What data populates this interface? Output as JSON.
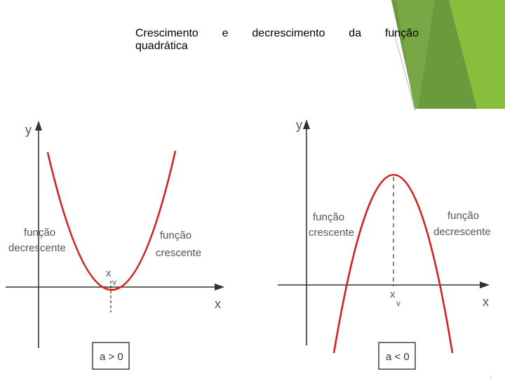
{
  "title": {
    "words_line1": [
      "Crescimento",
      "e",
      "decrescimento",
      "da",
      "função"
    ],
    "line2": "quadrática"
  },
  "graph_left": {
    "y_axis": "y",
    "x_axis": "x",
    "vertex_label": "x",
    "vertex_subscript": "v",
    "left_label_line1": "função",
    "left_label_line2": "decrescente",
    "right_label_line1": "função",
    "right_label_line2": "crescente",
    "condition": "a > 0"
  },
  "graph_right": {
    "y_axis": "y",
    "x_axis": "x",
    "vertex_label": "x",
    "vertex_subscript": "v",
    "left_label_line1": "função",
    "left_label_line2": "crescente",
    "right_label_line1": "função",
    "right_label_line2": "decrescente",
    "condition": "a < 0"
  },
  "colors": {
    "curve": "#d42020",
    "axis": "#333333",
    "accent_green_dark": "#6a9a3c",
    "accent_green_light": "#8cc43c",
    "label_text": "#555555"
  }
}
